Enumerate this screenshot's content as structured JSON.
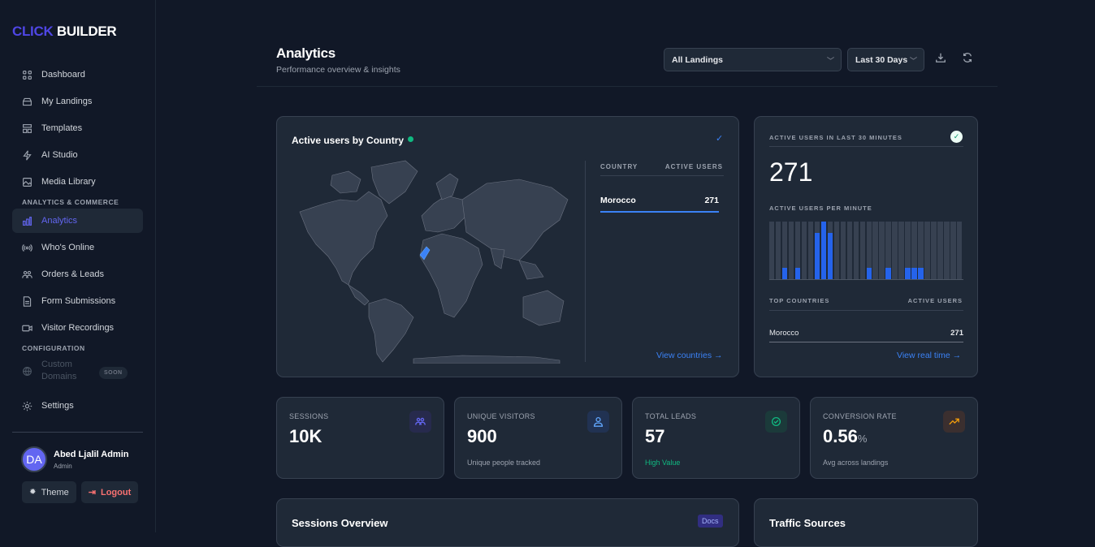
{
  "brand": {
    "part1": "CLICK",
    "part2": "BUILDER"
  },
  "sidebar": {
    "items": [
      {
        "label": "Dashboard",
        "icon": "grid-icon"
      },
      {
        "label": "My Landings",
        "icon": "stack-icon"
      },
      {
        "label": "Templates",
        "icon": "layout-icon"
      },
      {
        "label": "AI Studio",
        "icon": "bolt-icon"
      },
      {
        "label": "Media Library",
        "icon": "image-icon"
      },
      {
        "label": "Analytics",
        "icon": "bar-chart-icon",
        "active": true
      },
      {
        "label": "Who's Online",
        "icon": "broadcast-icon"
      },
      {
        "label": "Orders & Leads",
        "icon": "users-icon"
      },
      {
        "label": "Form Submissions",
        "icon": "file-icon"
      },
      {
        "label": "Visitor Recordings",
        "icon": "video-icon"
      },
      {
        "label": "Custom Domains",
        "icon": "globe-icon",
        "disabled": true
      },
      {
        "label": "Settings",
        "icon": "gear-icon"
      }
    ],
    "sections": [
      "ANALYTICS & COMMERCE",
      "CONFIGURATION"
    ],
    "soon_badge": "SOON",
    "user": {
      "initials": "DA",
      "name": "Abed Ljalil Admin",
      "role": "Admin"
    },
    "theme_label": "Theme",
    "logout_label": "Logout"
  },
  "header": {
    "title": "Analytics",
    "subtitle": "Performance overview & insights",
    "landing_select": "All Landings",
    "range_select": "Last 30 Days"
  },
  "map_card": {
    "title": "Active users by Country",
    "col_country": "COUNTRY",
    "col_users": "ACTIVE USERS",
    "rows": [
      {
        "country": "Morocco",
        "users": "271"
      }
    ],
    "link": "View countries →",
    "status_color": "#10b981",
    "highlight_color": "#3b82f6"
  },
  "realtime": {
    "label": "ACTIVE USERS IN LAST 30 MINUTES",
    "value": "271",
    "per_minute_label": "ACTIVE USERS PER MINUTE",
    "per_minute": [
      0,
      0,
      1,
      0,
      1,
      0,
      0,
      4,
      5,
      4,
      0,
      0,
      0,
      0,
      0,
      1,
      0,
      0,
      1,
      0,
      0,
      1,
      1,
      1,
      0,
      0,
      0,
      0,
      0,
      0
    ],
    "per_minute_max": 5,
    "top_label": "TOP COUNTRIES",
    "top_users_label": "ACTIVE USERS",
    "top": [
      {
        "country": "Morocco",
        "users": "271"
      }
    ],
    "link": "View real time →"
  },
  "stats": [
    {
      "label": "SESSIONS",
      "value": "10K",
      "unit": "",
      "sub": "",
      "icon": "users-icon",
      "color": "#6366f1",
      "bg": "#272a4d"
    },
    {
      "label": "UNIQUE VISITORS",
      "value": "900",
      "unit": "",
      "sub": "Unique people tracked",
      "icon": "user-icon",
      "color": "#60a5fa",
      "bg": "#213252"
    },
    {
      "label": "TOTAL LEADS",
      "value": "57",
      "unit": "",
      "sub": "High Value",
      "icon": "check-circle-icon",
      "color": "#10b981",
      "bg": "#1b3a3a"
    },
    {
      "label": "CONVERSION RATE",
      "value": "0.56",
      "unit": "%",
      "sub": "Avg across landings",
      "icon": "trend-up-icon",
      "color": "#f59e0b",
      "bg": "#3b2f2f"
    }
  ],
  "sessions_card": {
    "title": "Sessions Overview",
    "docs": "Docs"
  },
  "traffic_card": {
    "title": "Traffic Sources"
  }
}
